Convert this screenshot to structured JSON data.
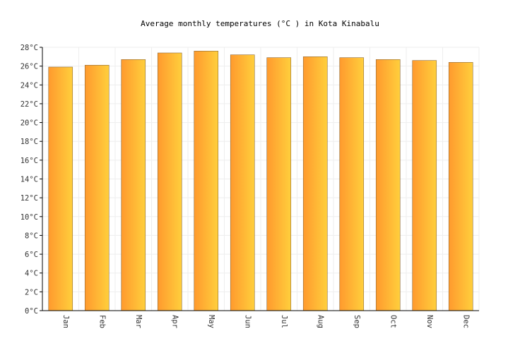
{
  "chart_data": {
    "type": "bar",
    "title": "Average monthly temperatures (°C ) in Kota Kinabalu",
    "categories": [
      "Jan",
      "Feb",
      "Mar",
      "Apr",
      "May",
      "Jun",
      "Jul",
      "Aug",
      "Sep",
      "Oct",
      "Nov",
      "Dec"
    ],
    "values": [
      25.9,
      26.1,
      26.7,
      27.4,
      27.6,
      27.2,
      26.9,
      27.0,
      26.9,
      26.7,
      26.6,
      26.4
    ],
    "ylim": [
      0,
      28
    ],
    "ytick_step": 2,
    "ytick_labels": [
      "0°C",
      "2°C",
      "4°C",
      "6°C",
      "8°C",
      "10°C",
      "12°C",
      "14°C",
      "16°C",
      "18°C",
      "20°C",
      "22°C",
      "24°C",
      "26°C",
      "28°C"
    ],
    "grid": true,
    "colors": {
      "bar_start": "#ff9a2e",
      "bar_end": "#ffcf3c",
      "bar_stroke": "#8c6a3a"
    }
  }
}
